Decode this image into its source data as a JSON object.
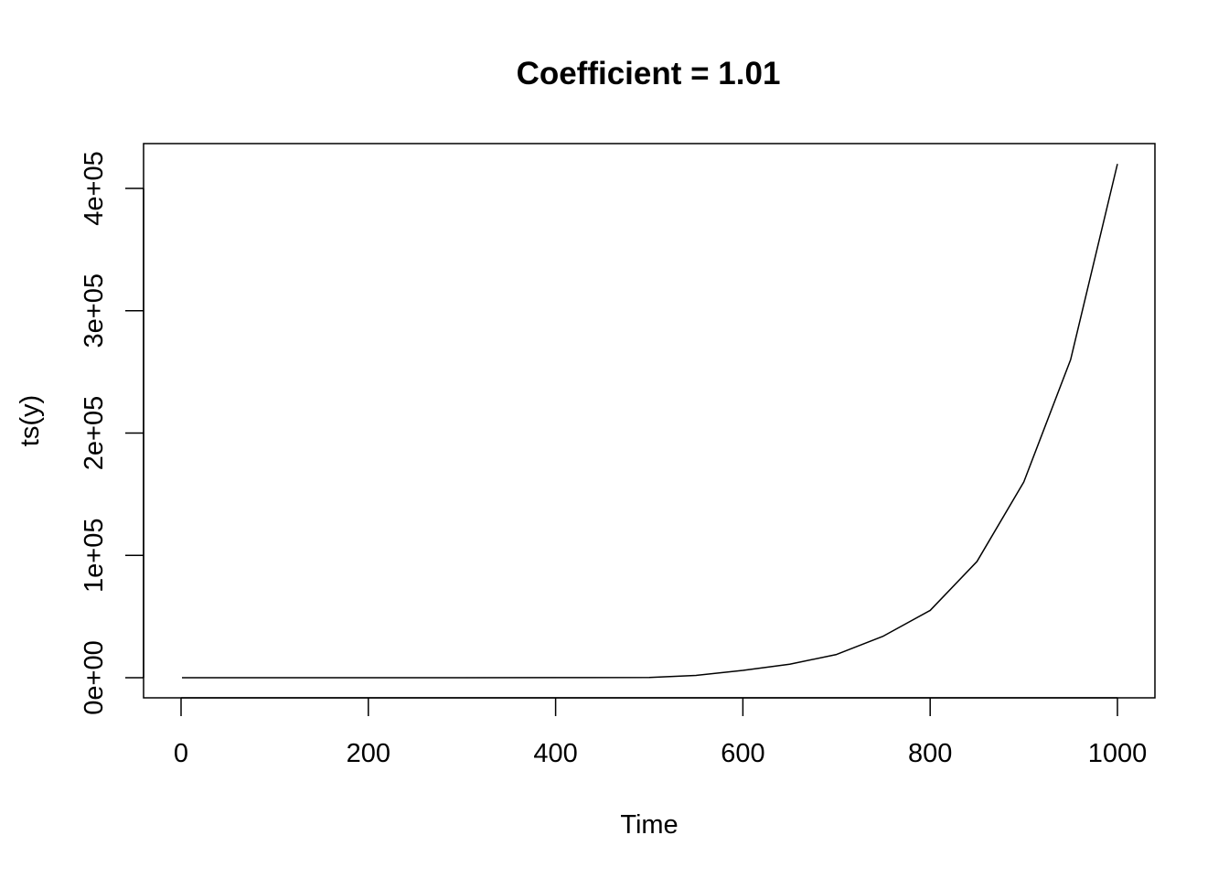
{
  "chart_data": {
    "type": "line",
    "title": "Coefficient = 1.01",
    "xlabel": "Time",
    "ylabel": "ts(y)",
    "xlim": [
      0,
      1000
    ],
    "ylim": [
      0,
      420000
    ],
    "xticks": [
      0,
      200,
      400,
      600,
      800,
      1000
    ],
    "xtick_labels": [
      "0",
      "200",
      "400",
      "600",
      "800",
      "1000"
    ],
    "yticks": [
      0,
      100000,
      200000,
      300000,
      400000
    ],
    "ytick_labels": [
      "0e+00",
      "1e+05",
      "2e+05",
      "3e+05",
      "4e+05"
    ],
    "grid": false,
    "legend": "none",
    "line_color": "#000000",
    "series": [
      {
        "x": [
          1,
          100,
          200,
          300,
          400,
          500,
          550,
          600,
          650,
          700,
          750,
          800,
          850,
          900,
          950,
          1000
        ],
        "values": [
          1,
          2.7,
          7.3,
          19.8,
          53.5,
          145,
          1900,
          6000,
          11000,
          19000,
          34000,
          55000,
          95000,
          160000,
          260000,
          420000
        ]
      }
    ]
  }
}
